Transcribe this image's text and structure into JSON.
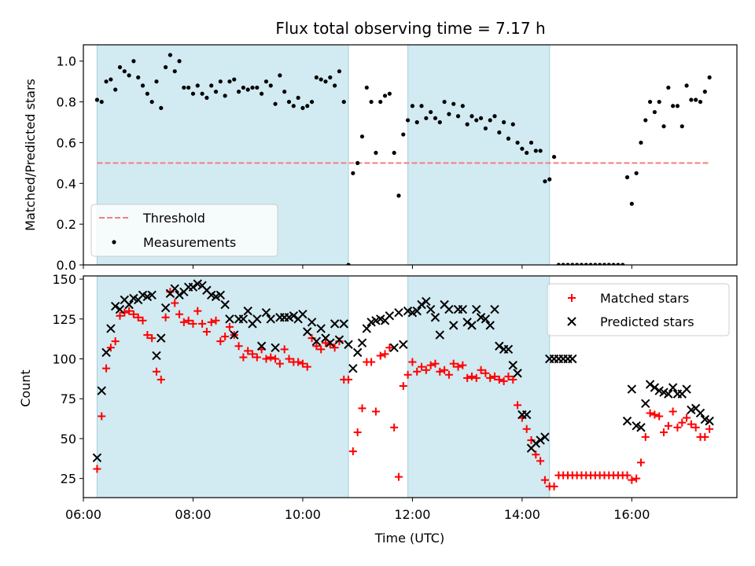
{
  "chart_data": [
    {
      "type": "scatter",
      "title": "Flux total observing time = 7.17 h",
      "xlabel": "",
      "ylabel": "Matched/Predicted stars",
      "xlim": [
        "06:00",
        "17:55"
      ],
      "ylim": [
        0,
        1.08
      ],
      "yticks": [
        "0.0",
        "0.2",
        "0.4",
        "0.6",
        "0.8",
        "1.0"
      ],
      "xticks": [
        "06:00",
        "08:00",
        "10:00",
        "12:00",
        "14:00",
        "16:00"
      ],
      "grid": false,
      "legend": {
        "placement": "lower-left",
        "entries": [
          "Threshold",
          "Measurements"
        ]
      },
      "shaded_intervals": [
        [
          "06:15",
          "10:50"
        ],
        [
          "11:55",
          "14:30"
        ]
      ],
      "threshold": {
        "name": "Threshold",
        "value": 0.5,
        "x_range": [
          "06:15",
          "17:25"
        ],
        "color": "#f08080"
      },
      "series": [
        {
          "name": "Measurements",
          "marker": "dot",
          "color": "#000000",
          "x": [
            "06:15",
            "06:20",
            "06:25",
            "06:30",
            "06:35",
            "06:40",
            "06:45",
            "06:50",
            "06:55",
            "07:00",
            "07:05",
            "07:10",
            "07:15",
            "07:20",
            "07:25",
            "07:30",
            "07:35",
            "07:40",
            "07:45",
            "07:50",
            "07:55",
            "08:00",
            "08:05",
            "08:10",
            "08:15",
            "08:20",
            "08:25",
            "08:30",
            "08:35",
            "08:40",
            "08:45",
            "08:50",
            "08:55",
            "09:00",
            "09:05",
            "09:10",
            "09:15",
            "09:20",
            "09:25",
            "09:30",
            "09:35",
            "09:40",
            "09:45",
            "09:50",
            "09:55",
            "10:00",
            "10:05",
            "10:10",
            "10:15",
            "10:20",
            "10:25",
            "10:30",
            "10:35",
            "10:40",
            "10:45",
            "10:50",
            "10:55",
            "11:00",
            "11:05",
            "11:10",
            "11:15",
            "11:20",
            "11:25",
            "11:30",
            "11:35",
            "11:40",
            "11:45",
            "11:50",
            "11:55",
            "12:00",
            "12:05",
            "12:10",
            "12:15",
            "12:20",
            "12:25",
            "12:30",
            "12:35",
            "12:40",
            "12:45",
            "12:50",
            "12:55",
            "13:00",
            "13:05",
            "13:10",
            "13:15",
            "13:20",
            "13:25",
            "13:30",
            "13:35",
            "13:40",
            "13:45",
            "13:50",
            "13:55",
            "14:00",
            "14:05",
            "14:10",
            "14:15",
            "14:20",
            "14:25",
            "14:30",
            "14:35",
            "14:40",
            "14:45",
            "14:50",
            "14:55",
            "15:00",
            "15:05",
            "15:10",
            "15:15",
            "15:20",
            "15:25",
            "15:30",
            "15:35",
            "15:40",
            "15:45",
            "15:50",
            "15:55",
            "16:00",
            "16:05",
            "16:10",
            "16:15",
            "16:20",
            "16:25",
            "16:30",
            "16:35",
            "16:40",
            "16:45",
            "16:50",
            "16:55",
            "17:00",
            "17:05",
            "17:10",
            "17:15",
            "17:20",
            "17:25"
          ],
          "y": [
            0.81,
            0.8,
            0.9,
            0.91,
            0.86,
            0.97,
            0.95,
            0.93,
            1.0,
            0.92,
            0.88,
            0.84,
            0.8,
            0.9,
            0.77,
            0.97,
            1.03,
            0.95,
            1.0,
            0.87,
            0.87,
            0.84,
            0.88,
            0.84,
            0.82,
            0.88,
            0.85,
            0.9,
            0.83,
            0.9,
            0.91,
            0.85,
            0.87,
            0.86,
            0.87,
            0.87,
            0.84,
            0.9,
            0.88,
            0.79,
            0.93,
            0.85,
            0.8,
            0.78,
            0.82,
            0.77,
            0.78,
            0.8,
            0.92,
            0.91,
            0.9,
            0.92,
            0.88,
            0.95,
            0.8,
            0.0,
            0.45,
            0.5,
            0.63,
            0.87,
            0.8,
            0.55,
            0.8,
            0.83,
            0.84,
            0.55,
            0.34,
            0.64,
            0.71,
            0.78,
            0.7,
            0.78,
            0.72,
            0.75,
            0.72,
            0.7,
            0.8,
            0.74,
            0.79,
            0.73,
            0.78,
            0.69,
            0.73,
            0.71,
            0.72,
            0.67,
            0.71,
            0.73,
            0.65,
            0.7,
            0.62,
            0.69,
            0.6,
            0.57,
            0.55,
            0.6,
            0.56,
            0.56,
            0.41,
            0.42,
            0.53,
            0.0,
            0.0,
            0.0,
            0.0,
            0.0,
            0.0,
            0.0,
            0.0,
            0.0,
            0.0,
            0.0,
            0.0,
            0.0,
            0.0,
            0.0,
            0.43,
            0.3,
            0.45,
            0.6,
            0.71,
            0.8,
            0.75,
            0.8,
            0.68,
            0.87,
            0.78,
            0.78,
            0.68,
            0.88,
            0.81,
            0.81,
            0.8,
            0.85,
            0.92
          ]
        }
      ]
    },
    {
      "type": "scatter",
      "title": "",
      "xlabel": "Time (UTC)",
      "ylabel": "Count",
      "xlim": [
        "06:00",
        "17:55"
      ],
      "ylim": [
        13,
        152
      ],
      "yticks": [
        "25",
        "50",
        "75",
        "100",
        "125",
        "150"
      ],
      "xticks": [
        "06:00",
        "08:00",
        "10:00",
        "12:00",
        "14:00",
        "16:00"
      ],
      "grid": false,
      "legend": {
        "placement": "top-right",
        "entries": [
          "Matched stars",
          "Predicted stars"
        ]
      },
      "shaded_intervals": [
        [
          "06:15",
          "10:50"
        ],
        [
          "11:55",
          "14:30"
        ]
      ],
      "series": [
        {
          "name": "Matched stars",
          "marker": "plus",
          "color": "#ff0000",
          "x": [
            "06:15",
            "06:20",
            "06:25",
            "06:30",
            "06:35",
            "06:40",
            "06:45",
            "06:50",
            "06:55",
            "07:00",
            "07:05",
            "07:10",
            "07:15",
            "07:20",
            "07:25",
            "07:30",
            "07:35",
            "07:40",
            "07:45",
            "07:50",
            "07:55",
            "08:00",
            "08:05",
            "08:10",
            "08:15",
            "08:20",
            "08:25",
            "08:30",
            "08:35",
            "08:40",
            "08:45",
            "08:50",
            "08:55",
            "09:00",
            "09:05",
            "09:10",
            "09:15",
            "09:20",
            "09:25",
            "09:30",
            "09:35",
            "09:40",
            "09:45",
            "09:50",
            "09:55",
            "10:00",
            "10:05",
            "10:10",
            "10:15",
            "10:20",
            "10:25",
            "10:30",
            "10:35",
            "10:40",
            "10:45",
            "10:50",
            "10:55",
            "11:00",
            "11:05",
            "11:10",
            "11:15",
            "11:20",
            "11:25",
            "11:30",
            "11:35",
            "11:40",
            "11:45",
            "11:50",
            "11:55",
            "12:00",
            "12:05",
            "12:10",
            "12:15",
            "12:20",
            "12:25",
            "12:30",
            "12:35",
            "12:40",
            "12:45",
            "12:50",
            "12:55",
            "13:00",
            "13:05",
            "13:10",
            "13:15",
            "13:20",
            "13:25",
            "13:30",
            "13:35",
            "13:40",
            "13:45",
            "13:50",
            "13:55",
            "14:00",
            "14:05",
            "14:10",
            "14:15",
            "14:20",
            "14:25",
            "14:30",
            "14:35",
            "14:40",
            "14:45",
            "14:50",
            "14:55",
            "15:00",
            "15:05",
            "15:10",
            "15:15",
            "15:20",
            "15:25",
            "15:30",
            "15:35",
            "15:40",
            "15:45",
            "15:50",
            "15:55",
            "16:00",
            "16:05",
            "16:10",
            "16:15",
            "16:20",
            "16:25",
            "16:30",
            "16:35",
            "16:40",
            "16:45",
            "16:50",
            "16:55",
            "17:00",
            "17:05",
            "17:10",
            "17:15",
            "17:20",
            "17:25"
          ],
          "y": [
            31,
            64,
            94,
            107,
            111,
            127,
            129,
            130,
            128,
            126,
            124,
            115,
            113,
            92,
            87,
            126,
            142,
            135,
            128,
            123,
            124,
            122,
            130,
            122,
            117,
            123,
            124,
            111,
            114,
            120,
            115,
            108,
            101,
            105,
            103,
            101,
            106,
            100,
            101,
            100,
            97,
            106,
            100,
            98,
            98,
            97,
            95,
            113,
            108,
            106,
            110,
            109,
            107,
            111,
            87,
            87,
            42,
            54,
            69,
            98,
            98,
            67,
            102,
            103,
            107,
            57,
            26,
            83,
            90,
            98,
            92,
            95,
            93,
            96,
            97,
            92,
            93,
            90,
            97,
            95,
            96,
            88,
            89,
            88,
            93,
            91,
            88,
            89,
            87,
            86,
            89,
            87,
            71,
            63,
            56,
            49,
            40,
            36,
            24,
            20,
            20,
            27,
            27,
            27,
            27,
            27,
            27,
            27,
            27,
            27,
            27,
            27,
            27,
            27,
            27,
            27,
            27,
            24,
            25,
            35,
            51,
            66,
            65,
            64,
            54,
            58,
            67,
            57,
            60,
            63,
            59,
            57,
            51,
            51,
            56
          ]
        },
        {
          "name": "Predicted stars",
          "marker": "x",
          "color": "#000000",
          "x": [
            "06:15",
            "06:20",
            "06:25",
            "06:30",
            "06:35",
            "06:40",
            "06:45",
            "06:50",
            "06:55",
            "07:00",
            "07:05",
            "07:10",
            "07:15",
            "07:20",
            "07:25",
            "07:30",
            "07:35",
            "07:40",
            "07:45",
            "07:50",
            "07:55",
            "08:00",
            "08:05",
            "08:10",
            "08:15",
            "08:20",
            "08:25",
            "08:30",
            "08:35",
            "08:40",
            "08:45",
            "08:50",
            "08:55",
            "09:00",
            "09:05",
            "09:10",
            "09:15",
            "09:20",
            "09:25",
            "09:30",
            "09:35",
            "09:40",
            "09:45",
            "09:50",
            "09:55",
            "10:00",
            "10:05",
            "10:10",
            "10:15",
            "10:20",
            "10:25",
            "10:30",
            "10:35",
            "10:40",
            "10:45",
            "10:50",
            "10:55",
            "11:00",
            "11:05",
            "11:10",
            "11:15",
            "11:20",
            "11:25",
            "11:30",
            "11:35",
            "11:40",
            "11:45",
            "11:50",
            "11:55",
            "12:00",
            "12:05",
            "12:10",
            "12:15",
            "12:20",
            "12:25",
            "12:30",
            "12:35",
            "12:40",
            "12:45",
            "12:50",
            "12:55",
            "13:00",
            "13:05",
            "13:10",
            "13:15",
            "13:20",
            "13:25",
            "13:30",
            "13:35",
            "13:40",
            "13:45",
            "13:50",
            "13:55",
            "14:00",
            "14:05",
            "14:10",
            "14:15",
            "14:20",
            "14:25",
            "14:30",
            "14:35",
            "14:40",
            "14:45",
            "14:50",
            "14:55",
            "15:55",
            "16:00",
            "16:05",
            "16:10",
            "16:15",
            "16:20",
            "16:25",
            "16:30",
            "16:35",
            "16:40",
            "16:45",
            "16:50",
            "16:55",
            "17:00",
            "17:05",
            "17:10",
            "17:15",
            "17:20",
            "17:25"
          ],
          "y": [
            38,
            80,
            104,
            119,
            133,
            131,
            137,
            134,
            138,
            137,
            140,
            139,
            140,
            102,
            113,
            132,
            141,
            144,
            140,
            142,
            145,
            145,
            147,
            146,
            143,
            140,
            139,
            140,
            134,
            125,
            115,
            125,
            125,
            130,
            122,
            125,
            108,
            129,
            125,
            107,
            126,
            126,
            126,
            127,
            125,
            128,
            117,
            123,
            111,
            119,
            113,
            110,
            122,
            112,
            122,
            109,
            94,
            104,
            110,
            119,
            123,
            124,
            125,
            124,
            127,
            107,
            129,
            109,
            130,
            129,
            130,
            134,
            136,
            131,
            126,
            115,
            134,
            131,
            121,
            131,
            131,
            123,
            121,
            131,
            126,
            125,
            121,
            131,
            108,
            106,
            106,
            96,
            91,
            65,
            65,
            44,
            47,
            49,
            51,
            100,
            100,
            100,
            100,
            100,
            100,
            61,
            81,
            58,
            57,
            72,
            84,
            82,
            80,
            79,
            78,
            82,
            78,
            78,
            81,
            68,
            69,
            66,
            62,
            61
          ]
        }
      ]
    }
  ]
}
